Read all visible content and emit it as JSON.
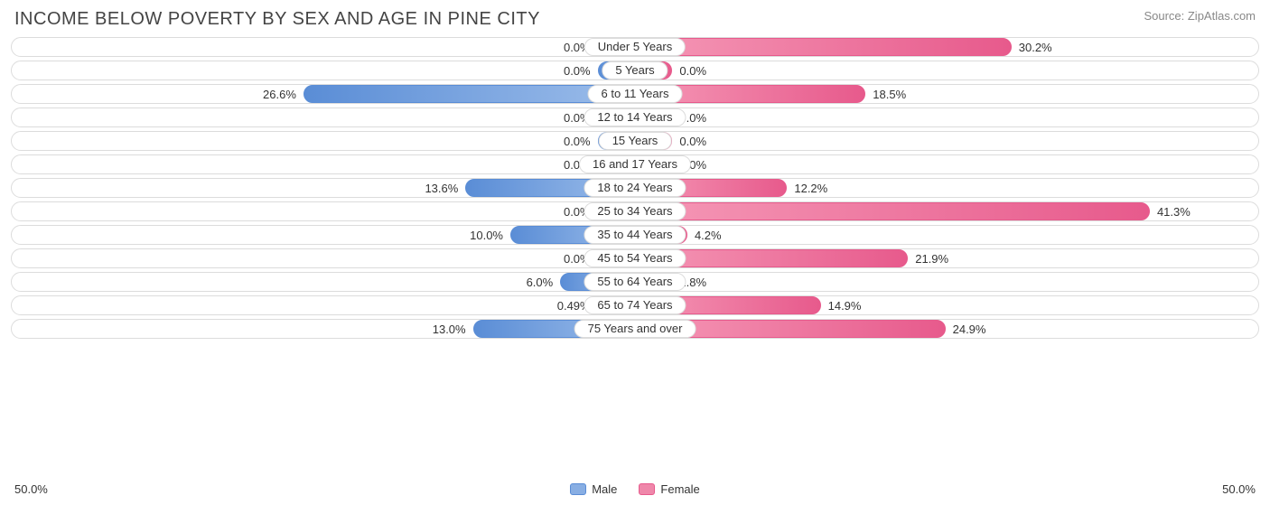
{
  "title": "INCOME BELOW POVERTY BY SEX AND AGE IN PINE CITY",
  "source": "Source: ZipAtlas.com",
  "axis_max": 50.0,
  "axis_label_left": "50.0%",
  "axis_label_right": "50.0%",
  "legend": {
    "male": "Male",
    "female": "Female"
  },
  "colors": {
    "male_start": "#5a8dd6",
    "male_end": "#9cbdea",
    "female_start": "#f598b6",
    "female_end": "#e75a8c",
    "track_border": "#dcdcdc",
    "text": "#333333",
    "title_text": "#444444",
    "source_text": "#888888",
    "background": "#ffffff"
  },
  "min_bar_pct": 6.0,
  "rows": [
    {
      "label": "Under 5 Years",
      "male": 0.0,
      "female": 30.2,
      "male_txt": "0.0%",
      "female_txt": "30.2%"
    },
    {
      "label": "5 Years",
      "male": 0.0,
      "female": 0.0,
      "male_txt": "0.0%",
      "female_txt": "0.0%"
    },
    {
      "label": "6 to 11 Years",
      "male": 26.6,
      "female": 18.5,
      "male_txt": "26.6%",
      "female_txt": "18.5%"
    },
    {
      "label": "12 to 14 Years",
      "male": 0.0,
      "female": 0.0,
      "male_txt": "0.0%",
      "female_txt": "0.0%"
    },
    {
      "label": "15 Years",
      "male": 0.0,
      "female": 0.0,
      "male_txt": "0.0%",
      "female_txt": "0.0%"
    },
    {
      "label": "16 and 17 Years",
      "male": 0.0,
      "female": 0.0,
      "male_txt": "0.0%",
      "female_txt": "0.0%"
    },
    {
      "label": "18 to 24 Years",
      "male": 13.6,
      "female": 12.2,
      "male_txt": "13.6%",
      "female_txt": "12.2%"
    },
    {
      "label": "25 to 34 Years",
      "male": 0.0,
      "female": 41.3,
      "male_txt": "0.0%",
      "female_txt": "41.3%"
    },
    {
      "label": "35 to 44 Years",
      "male": 10.0,
      "female": 4.2,
      "male_txt": "10.0%",
      "female_txt": "4.2%"
    },
    {
      "label": "45 to 54 Years",
      "male": 0.0,
      "female": 21.9,
      "male_txt": "0.0%",
      "female_txt": "21.9%"
    },
    {
      "label": "55 to 64 Years",
      "male": 6.0,
      "female": 2.8,
      "male_txt": "6.0%",
      "female_txt": "2.8%"
    },
    {
      "label": "65 to 74 Years",
      "male": 0.49,
      "female": 14.9,
      "male_txt": "0.49%",
      "female_txt": "14.9%"
    },
    {
      "label": "75 Years and over",
      "male": 13.0,
      "female": 24.9,
      "male_txt": "13.0%",
      "female_txt": "24.9%"
    }
  ]
}
